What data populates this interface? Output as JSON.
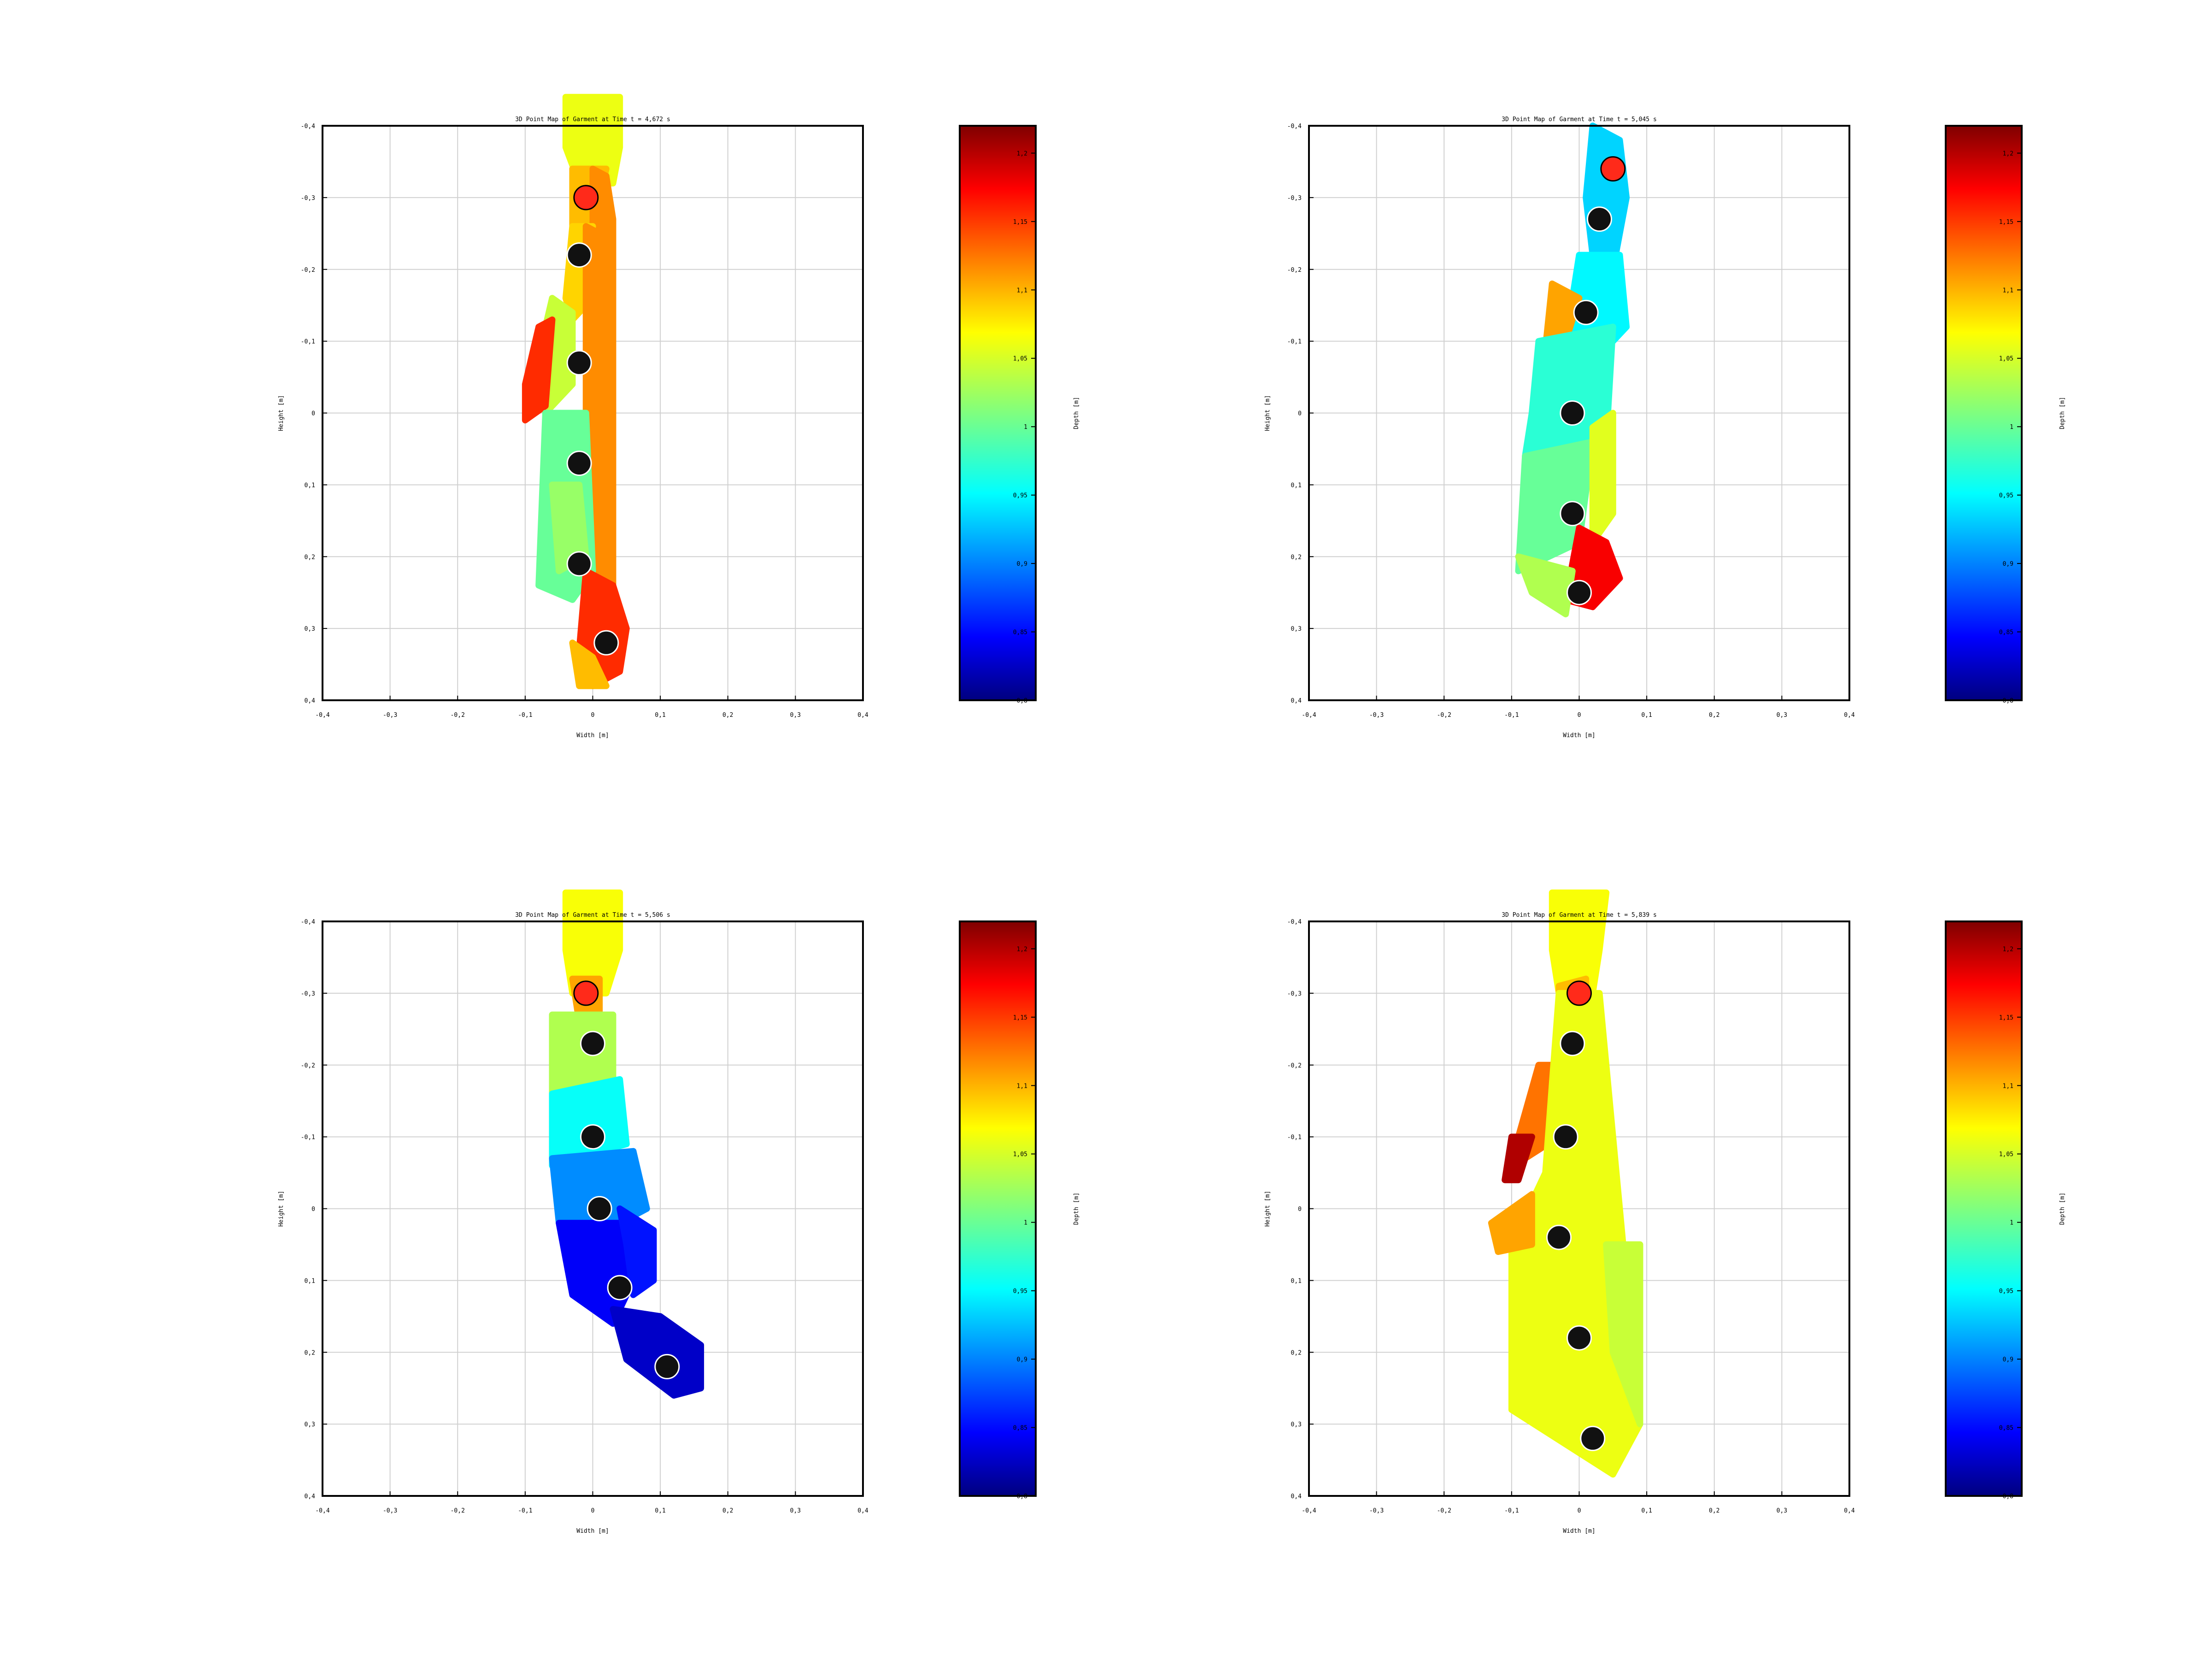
{
  "figure": {
    "title_lines": "",
    "colorbar_ticks": [
      "0,8",
      "0,85",
      "0,9",
      "0,95",
      "1",
      "1,05",
      "1,1",
      "1,15",
      "1,2"
    ],
    "colorbar_label": "Depth [m]",
    "colormap": "jet",
    "colors": {
      "marker_red": "#ff2a1a",
      "marker_black": "#111111",
      "grid": "#d0d0d0"
    }
  },
  "chart_data": [
    {
      "type": "scatter",
      "title": "3D Point Map of Garment at Time t = 4,672 s",
      "xlabel": "Width [m]",
      "ylabel": "Height [m]",
      "xlim": [
        -0.4,
        0.4
      ],
      "ylim": [
        -0.4,
        0.4
      ],
      "y_inverted": true,
      "xticks": [
        "-0,4",
        "-0,3",
        "-0,2",
        "-0,1",
        "0",
        "0,1",
        "0,2",
        "0,3",
        "0,4"
      ],
      "yticks": [
        "-0,4",
        "-0,3",
        "-0,2",
        "-0,1",
        "0",
        "0,1",
        "0,2",
        "0,3",
        "0,4"
      ],
      "colorbar": {
        "label": "Depth [m]",
        "range": [
          0.8,
          1.22
        ]
      },
      "markers": [
        {
          "x": -0.01,
          "y": -0.3,
          "color": "red"
        },
        {
          "x": -0.02,
          "y": -0.22,
          "color": "black"
        },
        {
          "x": -0.02,
          "y": -0.07,
          "color": "black"
        },
        {
          "x": -0.02,
          "y": 0.07,
          "color": "black"
        },
        {
          "x": -0.02,
          "y": 0.21,
          "color": "black"
        },
        {
          "x": 0.02,
          "y": 0.32,
          "color": "black"
        }
      ],
      "garment_bands": [
        {
          "points": [
            [
              -0.04,
              -0.44
            ],
            [
              0.04,
              -0.44
            ],
            [
              0.04,
              -0.37
            ],
            [
              0.03,
              -0.32
            ],
            [
              -0.02,
              -0.32
            ],
            [
              -0.04,
              -0.37
            ]
          ],
          "depth": 1.055
        },
        {
          "points": [
            [
              -0.03,
              -0.34
            ],
            [
              0.02,
              -0.34
            ],
            [
              0.0,
              -0.26
            ],
            [
              -0.03,
              -0.26
            ]
          ],
          "depth": 1.09
        },
        {
          "points": [
            [
              0.0,
              -0.34
            ],
            [
              0.02,
              -0.33
            ],
            [
              0.03,
              -0.27
            ],
            [
              0.03,
              -0.22
            ],
            [
              0.0,
              -0.24
            ]
          ],
          "depth": 1.11
        },
        {
          "points": [
            [
              -0.03,
              -0.26
            ],
            [
              0.0,
              -0.26
            ],
            [
              -0.01,
              -0.15
            ],
            [
              -0.03,
              -0.13
            ],
            [
              -0.04,
              -0.16
            ]
          ],
          "depth": 1.08
        },
        {
          "points": [
            [
              -0.06,
              -0.16
            ],
            [
              -0.03,
              -0.14
            ],
            [
              -0.03,
              -0.04
            ],
            [
              -0.07,
              0.0
            ],
            [
              -0.08,
              -0.08
            ]
          ],
          "depth": 1.04
        },
        {
          "points": [
            [
              -0.08,
              -0.12
            ],
            [
              -0.06,
              -0.13
            ],
            [
              -0.07,
              -0.01
            ],
            [
              -0.1,
              0.01
            ],
            [
              -0.1,
              -0.04
            ]
          ],
          "depth": 1.15
        },
        {
          "points": [
            [
              -0.01,
              -0.26
            ],
            [
              0.03,
              -0.24
            ],
            [
              0.03,
              0.26
            ],
            [
              0.0,
              0.26
            ],
            [
              -0.01,
              0.0
            ]
          ],
          "depth": 1.11
        },
        {
          "points": [
            [
              -0.07,
              0.0
            ],
            [
              -0.01,
              0.0
            ],
            [
              0.0,
              0.22
            ],
            [
              -0.03,
              0.26
            ],
            [
              -0.08,
              0.24
            ]
          ],
          "depth": 1.0
        },
        {
          "points": [
            [
              -0.06,
              0.1
            ],
            [
              -0.02,
              0.1
            ],
            [
              -0.01,
              0.2
            ],
            [
              -0.05,
              0.22
            ]
          ],
          "depth": 1.02
        },
        {
          "points": [
            [
              -0.01,
              0.22
            ],
            [
              0.03,
              0.24
            ],
            [
              0.05,
              0.3
            ],
            [
              0.04,
              0.36
            ],
            [
              0.0,
              0.38
            ],
            [
              -0.02,
              0.33
            ]
          ],
          "depth": 1.15
        },
        {
          "points": [
            [
              -0.03,
              0.32
            ],
            [
              0.0,
              0.34
            ],
            [
              0.02,
              0.38
            ],
            [
              -0.02,
              0.38
            ]
          ],
          "depth": 1.09
        }
      ]
    },
    {
      "type": "scatter",
      "title": "3D Point Map of Garment at Time t = 5,045 s",
      "xlabel": "Width [m]",
      "ylabel": "Height [m]",
      "xlim": [
        -0.4,
        0.4
      ],
      "ylim": [
        -0.4,
        0.4
      ],
      "y_inverted": true,
      "xticks": [
        "-0,4",
        "-0,3",
        "-0,2",
        "-0,1",
        "0",
        "0,1",
        "0,2",
        "0,3",
        "0,4"
      ],
      "yticks": [
        "-0,4",
        "-0,3",
        "-0,2",
        "-0,1",
        "0",
        "0,1",
        "0,2",
        "0,3",
        "0,4"
      ],
      "colorbar": {
        "label": "Depth [m]",
        "range": [
          0.8,
          1.22
        ]
      },
      "markers": [
        {
          "x": 0.05,
          "y": -0.34,
          "color": "red"
        },
        {
          "x": 0.03,
          "y": -0.27,
          "color": "black"
        },
        {
          "x": 0.01,
          "y": -0.14,
          "color": "black"
        },
        {
          "x": -0.01,
          "y": 0.0,
          "color": "black"
        },
        {
          "x": -0.01,
          "y": 0.14,
          "color": "black"
        },
        {
          "x": 0.0,
          "y": 0.25,
          "color": "black"
        }
      ],
      "garment_bands": [
        {
          "points": [
            [
              0.02,
              -0.4
            ],
            [
              0.06,
              -0.38
            ],
            [
              0.07,
              -0.3
            ],
            [
              0.05,
              -0.2
            ],
            [
              0.02,
              -0.22
            ],
            [
              0.01,
              -0.3
            ]
          ],
          "depth": 0.94
        },
        {
          "points": [
            [
              0.0,
              -0.22
            ],
            [
              0.06,
              -0.22
            ],
            [
              0.07,
              -0.12
            ],
            [
              0.03,
              -0.08
            ],
            [
              -0.02,
              -0.1
            ]
          ],
          "depth": 0.955
        },
        {
          "points": [
            [
              -0.04,
              -0.18
            ],
            [
              0.0,
              -0.16
            ],
            [
              -0.02,
              -0.1
            ],
            [
              -0.05,
              -0.09
            ]
          ],
          "depth": 1.1
        },
        {
          "points": [
            [
              -0.06,
              -0.1
            ],
            [
              0.05,
              -0.12
            ],
            [
              0.04,
              0.04
            ],
            [
              -0.08,
              0.06
            ],
            [
              -0.07,
              0.0
            ]
          ],
          "depth": 0.975
        },
        {
          "points": [
            [
              -0.08,
              0.06
            ],
            [
              0.02,
              0.04
            ],
            [
              0.0,
              0.18
            ],
            [
              -0.09,
              0.22
            ]
          ],
          "depth": 1.0
        },
        {
          "points": [
            [
              0.02,
              0.02
            ],
            [
              0.05,
              0.0
            ],
            [
              0.05,
              0.14
            ],
            [
              0.02,
              0.18
            ]
          ],
          "depth": 1.05
        },
        {
          "points": [
            [
              0.0,
              0.16
            ],
            [
              0.04,
              0.18
            ],
            [
              0.06,
              0.23
            ],
            [
              0.02,
              0.27
            ],
            [
              -0.02,
              0.26
            ]
          ],
          "depth": 1.17
        },
        {
          "points": [
            [
              -0.09,
              0.2
            ],
            [
              -0.01,
              0.22
            ],
            [
              -0.02,
              0.28
            ],
            [
              -0.07,
              0.25
            ]
          ],
          "depth": 1.03
        }
      ]
    },
    {
      "type": "scatter",
      "title": "3D Point Map of Garment at Time t = 5,506 s",
      "xlabel": "Width [m]",
      "ylabel": "Height [m]",
      "xlim": [
        -0.4,
        0.4
      ],
      "ylim": [
        -0.4,
        0.4
      ],
      "y_inverted": true,
      "xticks": [
        "-0,4",
        "-0,3",
        "-0,2",
        "-0,1",
        "0",
        "0,1",
        "0,2",
        "0,3",
        "0,4"
      ],
      "yticks": [
        "-0,4",
        "-0,3",
        "-0,2",
        "-0,1",
        "0",
        "0,1",
        "0,2",
        "0,3",
        "0,4"
      ],
      "colorbar": {
        "label": "Depth [m]",
        "range": [
          0.8,
          1.22
        ]
      },
      "markers": [
        {
          "x": -0.01,
          "y": -0.3,
          "color": "red"
        },
        {
          "x": 0.0,
          "y": -0.23,
          "color": "black"
        },
        {
          "x": 0.0,
          "y": -0.1,
          "color": "black"
        },
        {
          "x": 0.01,
          "y": 0.0,
          "color": "black"
        },
        {
          "x": 0.04,
          "y": 0.11,
          "color": "black"
        },
        {
          "x": 0.11,
          "y": 0.22,
          "color": "black"
        }
      ],
      "garment_bands": [
        {
          "points": [
            [
              -0.04,
              -0.44
            ],
            [
              0.04,
              -0.44
            ],
            [
              0.04,
              -0.36
            ],
            [
              0.02,
              -0.3
            ],
            [
              -0.03,
              -0.3
            ],
            [
              -0.04,
              -0.36
            ]
          ],
          "depth": 1.06
        },
        {
          "points": [
            [
              -0.03,
              -0.32
            ],
            [
              0.01,
              -0.32
            ],
            [
              0.01,
              -0.26
            ],
            [
              -0.02,
              -0.26
            ]
          ],
          "depth": 1.1
        },
        {
          "points": [
            [
              -0.06,
              -0.27
            ],
            [
              0.03,
              -0.27
            ],
            [
              0.03,
              -0.18
            ],
            [
              -0.06,
              -0.15
            ]
          ],
          "depth": 1.03
        },
        {
          "points": [
            [
              -0.06,
              -0.16
            ],
            [
              0.04,
              -0.18
            ],
            [
              0.05,
              -0.09
            ],
            [
              -0.06,
              -0.06
            ]
          ],
          "depth": 0.96
        },
        {
          "points": [
            [
              -0.06,
              -0.07
            ],
            [
              0.06,
              -0.08
            ],
            [
              0.08,
              0.0
            ],
            [
              0.02,
              0.03
            ],
            [
              -0.05,
              0.02
            ]
          ],
          "depth": 0.91
        },
        {
          "points": [
            [
              -0.05,
              0.02
            ],
            [
              0.04,
              0.02
            ],
            [
              0.06,
              0.1
            ],
            [
              0.03,
              0.16
            ],
            [
              -0.03,
              0.12
            ]
          ],
          "depth": 0.85
        },
        {
          "points": [
            [
              0.04,
              0.0
            ],
            [
              0.09,
              0.03
            ],
            [
              0.09,
              0.1
            ],
            [
              0.06,
              0.12
            ],
            [
              0.05,
              0.05
            ]
          ],
          "depth": 0.86
        },
        {
          "points": [
            [
              0.03,
              0.14
            ],
            [
              0.1,
              0.15
            ],
            [
              0.16,
              0.19
            ],
            [
              0.16,
              0.25
            ],
            [
              0.12,
              0.26
            ],
            [
              0.05,
              0.21
            ]
          ],
          "depth": 0.83
        }
      ]
    },
    {
      "type": "scatter",
      "title": "3D Point Map of Garment at Time t = 5,839 s",
      "xlabel": "Width [m]",
      "ylabel": "Height [m]",
      "xlim": [
        -0.4,
        0.4
      ],
      "ylim": [
        -0.4,
        0.4
      ],
      "y_inverted": true,
      "xticks": [
        "-0,4",
        "-0,3",
        "-0,2",
        "-0,1",
        "0",
        "0,1",
        "0,2",
        "0,3",
        "0,4"
      ],
      "yticks": [
        "-0,4",
        "-0,3",
        "-0,2",
        "-0,1",
        "0",
        "0,1",
        "0,2",
        "0,3",
        "0,4"
      ],
      "colorbar": {
        "label": "Depth [m]",
        "range": [
          0.8,
          1.22
        ]
      },
      "markers": [
        {
          "x": 0.0,
          "y": -0.3,
          "color": "red"
        },
        {
          "x": -0.01,
          "y": -0.23,
          "color": "black"
        },
        {
          "x": -0.02,
          "y": -0.1,
          "color": "black"
        },
        {
          "x": -0.03,
          "y": 0.04,
          "color": "black"
        },
        {
          "x": 0.0,
          "y": 0.18,
          "color": "black"
        },
        {
          "x": 0.02,
          "y": 0.32,
          "color": "black"
        }
      ],
      "garment_bands": [
        {
          "points": [
            [
              -0.04,
              -0.44
            ],
            [
              0.04,
              -0.44
            ],
            [
              0.03,
              -0.36
            ],
            [
              0.02,
              -0.3
            ],
            [
              -0.03,
              -0.3
            ],
            [
              -0.04,
              -0.36
            ]
          ],
          "depth": 1.06
        },
        {
          "points": [
            [
              -0.03,
              -0.31
            ],
            [
              0.01,
              -0.32
            ],
            [
              0.01,
              -0.26
            ],
            [
              -0.03,
              -0.25
            ]
          ],
          "depth": 1.09
        },
        {
          "points": [
            [
              -0.06,
              -0.2
            ],
            [
              -0.02,
              -0.2
            ],
            [
              -0.03,
              -0.1
            ],
            [
              -0.08,
              -0.07
            ],
            [
              -0.09,
              -0.1
            ]
          ],
          "depth": 1.12
        },
        {
          "points": [
            [
              -0.1,
              -0.1
            ],
            [
              -0.07,
              -0.1
            ],
            [
              -0.09,
              -0.04
            ],
            [
              -0.11,
              -0.04
            ]
          ],
          "depth": 1.2
        },
        {
          "points": [
            [
              -0.03,
              -0.3
            ],
            [
              0.03,
              -0.3
            ],
            [
              0.09,
              0.3
            ],
            [
              0.05,
              0.37
            ],
            [
              -0.1,
              0.28
            ],
            [
              -0.1,
              0.05
            ],
            [
              -0.05,
              -0.05
            ]
          ],
          "depth": 1.055
        },
        {
          "points": [
            [
              -0.13,
              0.02
            ],
            [
              -0.07,
              -0.02
            ],
            [
              -0.07,
              0.05
            ],
            [
              -0.12,
              0.06
            ]
          ],
          "depth": 1.1
        },
        {
          "points": [
            [
              0.04,
              0.05
            ],
            [
              0.09,
              0.05
            ],
            [
              0.09,
              0.3
            ],
            [
              0.05,
              0.2
            ]
          ],
          "depth": 1.04
        }
      ]
    }
  ]
}
